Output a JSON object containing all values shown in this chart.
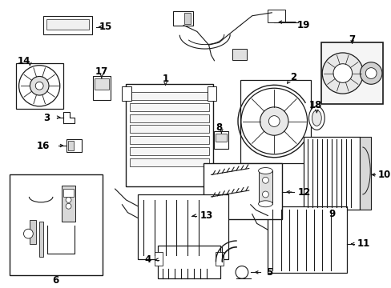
{
  "bg_color": "#ffffff",
  "line_color": "#1a1a1a",
  "label_color": "#000000",
  "font_size": 8.5,
  "fig_w": 4.89,
  "fig_h": 3.6,
  "dpi": 100
}
